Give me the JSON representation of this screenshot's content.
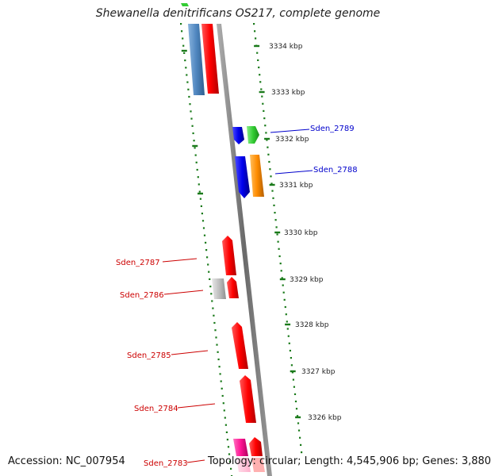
{
  "header": {
    "title": "Shewanella denitrificans OS217, complete genome"
  },
  "footer": {
    "accession": "Accession: NC_007954",
    "summary": "Topology: circular; Length: 4,545,906 bp; Genes: 3,880"
  },
  "ruler": {
    "ticks": [
      "3334 kbp",
      "3333 kbp",
      "3332 kbp",
      "3331 kbp",
      "3330 kbp",
      "3329 kbp",
      "3328 kbp",
      "3327 kbp",
      "3326 kbp"
    ]
  },
  "genes": [
    {
      "name": "Sden_2789",
      "color": "#0000cc"
    },
    {
      "name": "Sden_2788",
      "color": "#0000cc"
    },
    {
      "name": "Sden_2787",
      "color": "#cc0000"
    },
    {
      "name": "Sden_2786",
      "color": "#cc0000"
    },
    {
      "name": "Sden_2785",
      "color": "#cc0000"
    },
    {
      "name": "Sden_2784",
      "color": "#cc0000"
    },
    {
      "name": "Sden_2783",
      "color": "#cc0000"
    }
  ],
  "colors": {
    "backbone": "#808080",
    "tick": "#1a7a1a",
    "red": "#ff0000",
    "blue": "#0000ee",
    "green": "#33cc33",
    "orange": "#ff8c00",
    "steelblue": "#4f86bf",
    "grey": "#c0c0c0",
    "pink": "#ff1493"
  }
}
